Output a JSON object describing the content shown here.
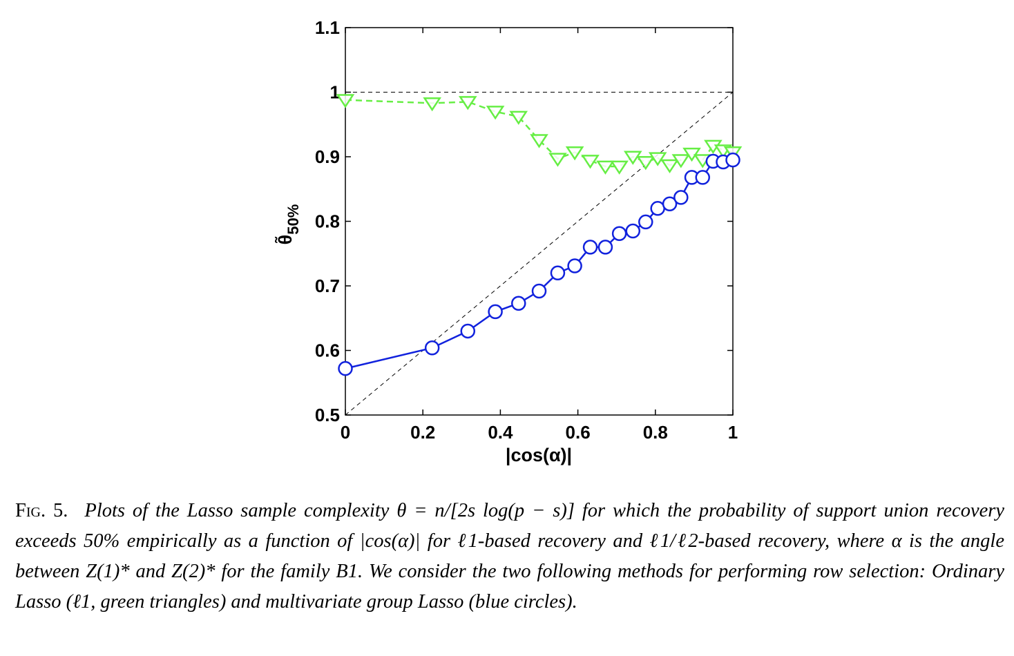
{
  "chart_data": {
    "type": "line",
    "xlabel": "|cos(α)|",
    "ylabel": "θ̃",
    "ylabel_sub": "50%",
    "xlim": [
      0,
      1
    ],
    "ylim": [
      0.5,
      1.1
    ],
    "xticks": [
      "0",
      "0.2",
      "0.4",
      "0.6",
      "0.8",
      "1"
    ],
    "yticks": [
      "0.5",
      "0.6",
      "0.7",
      "0.8",
      "0.9",
      "1",
      "1.1"
    ],
    "grid": false,
    "reference_lines": [
      {
        "type": "horizontal",
        "y": 1.0,
        "style": "dashed",
        "color": "#000000"
      },
      {
        "type": "diagonal",
        "from": [
          0,
          0.5
        ],
        "to": [
          1,
          1.0
        ],
        "style": "dashed",
        "color": "#000000"
      }
    ],
    "series": [
      {
        "marker": "triangle-down",
        "color": "#66ee44",
        "linestyle": "dashed",
        "x": [
          0.0,
          0.224,
          0.316,
          0.387,
          0.447,
          0.5,
          0.548,
          0.592,
          0.632,
          0.671,
          0.707,
          0.742,
          0.775,
          0.806,
          0.837,
          0.866,
          0.894,
          0.922,
          0.949,
          0.975,
          1.0
        ],
        "y": [
          0.988,
          0.983,
          0.985,
          0.97,
          0.962,
          0.926,
          0.897,
          0.907,
          0.894,
          0.885,
          0.885,
          0.9,
          0.892,
          0.898,
          0.887,
          0.895,
          0.905,
          0.895,
          0.917,
          0.91,
          0.907
        ]
      },
      {
        "marker": "circle",
        "color": "#1122dd",
        "linestyle": "solid",
        "x": [
          0.0,
          0.224,
          0.316,
          0.387,
          0.447,
          0.5,
          0.548,
          0.592,
          0.632,
          0.671,
          0.707,
          0.742,
          0.775,
          0.806,
          0.837,
          0.866,
          0.894,
          0.922,
          0.949,
          0.975,
          1.0
        ],
        "y": [
          0.572,
          0.604,
          0.63,
          0.66,
          0.673,
          0.692,
          0.72,
          0.731,
          0.76,
          0.76,
          0.781,
          0.785,
          0.799,
          0.82,
          0.827,
          0.837,
          0.868,
          0.868,
          0.893,
          0.892,
          0.895
        ]
      }
    ]
  },
  "caption": {
    "label": "Fig. 5.",
    "text": "Plots of the Lasso sample complexity θ = n/[2s log(p − s)] for which the probability of support union recovery exceeds 50% empirically as a function of |cos(α)| for ℓ1-based recovery and ℓ1/ℓ2-based recovery, where α is the angle between Z(1)* and Z(2)* for the family B1. We consider the two following methods for performing row selection: Ordinary Lasso (ℓ1, green triangles) and multivariate group Lasso (blue circles)."
  }
}
